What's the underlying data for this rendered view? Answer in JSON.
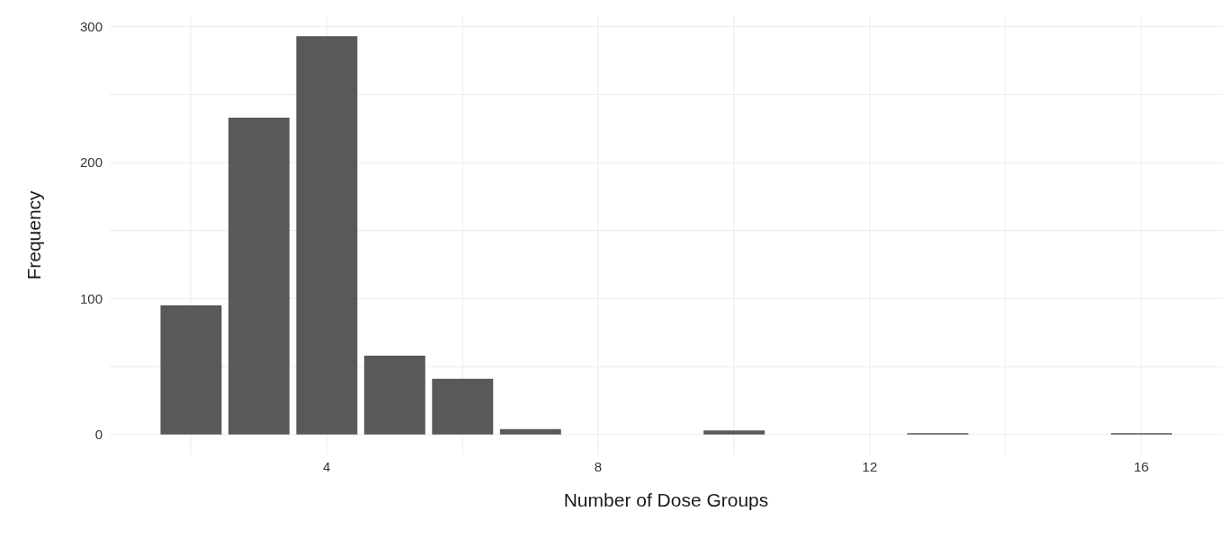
{
  "chart_data": {
    "type": "bar",
    "xlabel": "Number of Dose Groups",
    "ylabel": "Frequency",
    "x": [
      2,
      3,
      4,
      5,
      6,
      7,
      10,
      13,
      16
    ],
    "values": [
      95,
      233,
      293,
      58,
      41,
      4,
      3,
      1,
      1
    ],
    "color": "#595959",
    "xlim": [
      0.805,
      17.195
    ],
    "xticks": [
      {
        "value": 2,
        "label": null
      },
      4,
      {
        "value": 6,
        "label": null
      },
      8,
      {
        "value": 10,
        "label": null
      },
      12,
      {
        "value": 14,
        "label": null
      },
      16
    ],
    "ylim": [
      -14.65,
      307.65
    ],
    "yticks": [
      0,
      {
        "value": 50,
        "label": null
      },
      100,
      {
        "value": 150,
        "label": null
      },
      200,
      {
        "value": 250,
        "label": null
      },
      300
    ],
    "grid": true,
    "legend": false
  }
}
